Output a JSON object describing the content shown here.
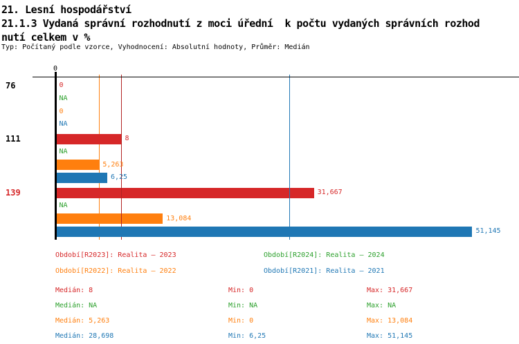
{
  "header": {
    "line1": "21. Lesní hospodářství",
    "line2": "21.1.3 Vydaná správní rozhodnutí z moci úřední  k počtu vydaných správních rozhod",
    "line3": "nutí celkem v %",
    "line4": "Typ: Počítaný podle vzorce, Vyhodnocení: Absolutní hodnoty, Průměr: Medián"
  },
  "colors": {
    "R2023": "#d62728",
    "R2024": "#2ca02c",
    "R2022": "#ff7f0e",
    "R2021": "#1f77b4",
    "R2023_line": "#b22222",
    "R2022_line": "#ff7f0e",
    "R2021_line": "#1f77b4",
    "axis": "#000000",
    "highlight_label": "#d62728",
    "normal_label": "#000000"
  },
  "chart_data": {
    "type": "bar",
    "orientation": "horizontal",
    "title": "21.1.3 Vydaná správní rozhodnutí z moci úřední k počtu vydaných správních rozhodnutí celkem v %",
    "unit": "%",
    "x_axis": {
      "tick_labels": [
        "0"
      ],
      "min": 0,
      "grid": "median-lines"
    },
    "categories": [
      "76",
      "111",
      "139"
    ],
    "highlighted_category": "139",
    "series": [
      {
        "name": "R2023",
        "label": "Realita – 2023",
        "values": [
          0,
          8,
          31.667
        ],
        "displays": [
          "0",
          "8",
          "31,667"
        ],
        "median": 8,
        "min": 0,
        "max": 31.667
      },
      {
        "name": "R2024",
        "label": "Realita – 2024",
        "values": [
          null,
          null,
          null
        ],
        "displays": [
          "NA",
          "NA",
          "NA"
        ],
        "median": null,
        "min": null,
        "max": null
      },
      {
        "name": "R2022",
        "label": "Realita – 2022",
        "values": [
          0,
          5.263,
          13.084
        ],
        "displays": [
          "0",
          "5,263",
          "13,084"
        ],
        "median": 5.263,
        "min": 0,
        "max": 13.084
      },
      {
        "name": "R2021",
        "label": "Realita – 2021",
        "values": [
          null,
          6.25,
          51.145
        ],
        "displays": [
          "NA",
          "6,25",
          "51,145"
        ],
        "median": 28.698,
        "min": 6.25,
        "max": 51.145
      }
    ]
  },
  "legend": {
    "items": [
      {
        "series": "R2023",
        "text": "Období[R2023]: Realita – 2023",
        "col": 0,
        "row": 0
      },
      {
        "series": "R2024",
        "text": "Období[R2024]: Realita – 2024",
        "col": 1,
        "row": 0
      },
      {
        "series": "R2022",
        "text": "Období[R2022]: Realita – 2022",
        "col": 0,
        "row": 1
      },
      {
        "series": "R2021",
        "text": "Období[R2021]: Realita – 2021",
        "col": 1,
        "row": 1
      }
    ]
  },
  "stats": {
    "rows": [
      {
        "series": "R2023",
        "median": "Medián: 8",
        "min": "Min: 0",
        "max": "Max: 31,667"
      },
      {
        "series": "R2024",
        "median": "Medián: NA",
        "min": "Min: NA",
        "max": "Max: NA"
      },
      {
        "series": "R2022",
        "median": "Medián: 5,263",
        "min": "Min: 0",
        "max": "Max: 13,084"
      },
      {
        "series": "R2021",
        "median": "Medián: 28,698",
        "min": "Min: 6,25",
        "max": "Max: 51,145"
      }
    ]
  }
}
